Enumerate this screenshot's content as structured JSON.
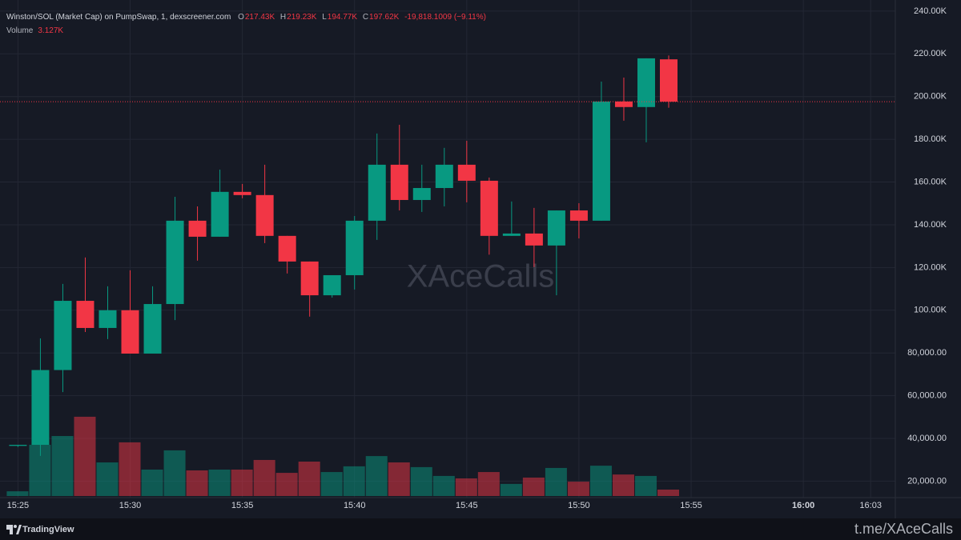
{
  "chart_data": {
    "type": "candlestick",
    "header": {
      "title": "Winston/SOL (Market Cap) on PumpSwap, 1, dexscreener.com",
      "open_label": "O",
      "open": "217.43K",
      "high_label": "H",
      "high": "219.23K",
      "low_label": "L",
      "low": "194.77K",
      "close_label": "C",
      "close": "197.62K",
      "change": "-19,818.1009 (−9.11%)",
      "volume_label": "Volume",
      "volume": "3.127K"
    },
    "watermark": "XAceCalls",
    "footer": {
      "brand": "TradingView",
      "link": "t.me/XAceCalls"
    },
    "up_color": "#089981",
    "down_color": "#f23645",
    "x": [
      925,
      926,
      927,
      928,
      929,
      930,
      931,
      932,
      933,
      934,
      935,
      936,
      937,
      938,
      939,
      940,
      941,
      942,
      943,
      944,
      945,
      946,
      947,
      948,
      949,
      950,
      951,
      952,
      953,
      954
    ],
    "open": [
      36500,
      37000,
      72000,
      104400,
      91700,
      100000,
      79700,
      102900,
      141900,
      134400,
      155400,
      153900,
      134800,
      122800,
      107000,
      116400,
      141900,
      168100,
      151600,
      157200,
      168100,
      160600,
      134800,
      135900,
      130300,
      146700,
      141900,
      197700,
      195100,
      217430
    ],
    "high": [
      37000,
      86800,
      112300,
      124700,
      111200,
      118700,
      111200,
      153100,
      148600,
      165800,
      159100,
      168100,
      134800,
      122800,
      116400,
      144100,
      182700,
      186800,
      168100,
      176000,
      179300,
      162100,
      150900,
      147900,
      146700,
      150100,
      207000,
      208900,
      217900,
      219230
    ],
    "low": [
      36000,
      31800,
      61700,
      89800,
      86500,
      79700,
      79700,
      95400,
      123200,
      134400,
      152400,
      131400,
      117200,
      97000,
      105900,
      109700,
      132900,
      146700,
      146000,
      148600,
      150500,
      126000,
      134800,
      120200,
      107000,
      133600,
      141900,
      188700,
      178600,
      194770
    ],
    "close": [
      37000,
      72000,
      104400,
      91700,
      100000,
      79700,
      102900,
      141900,
      134400,
      155400,
      153900,
      134800,
      122800,
      107000,
      116400,
      141900,
      168100,
      151600,
      157200,
      168100,
      160600,
      134800,
      135900,
      130300,
      146700,
      141900,
      197700,
      195100,
      217900,
      197620
    ],
    "volume": [
      2300,
      25000,
      29300,
      38700,
      16400,
      26200,
      12900,
      22300,
      12500,
      12900,
      12900,
      17600,
      11300,
      16800,
      11700,
      14500,
      19500,
      16400,
      14100,
      9800,
      8600,
      11700,
      5900,
      9000,
      13700,
      7000,
      14800,
      10500,
      9800,
      3127
    ],
    "xlim": [
      924.2,
      964.1
    ],
    "xticks": [
      {
        "value": 925,
        "label": "15:25"
      },
      {
        "value": 930,
        "label": "15:30"
      },
      {
        "value": 935,
        "label": "15:35"
      },
      {
        "value": 940,
        "label": "15:40"
      },
      {
        "value": 945,
        "label": "15:45"
      },
      {
        "value": 950,
        "label": "15:50"
      },
      {
        "value": 955,
        "label": "15:55"
      },
      {
        "value": 960,
        "label": "16:00"
      },
      {
        "value": 963,
        "label": "16:03"
      }
    ],
    "ylim": [
      12300,
      245200
    ],
    "yticks": [
      {
        "value": 240000,
        "label": "240.00K"
      },
      {
        "value": 220000,
        "label": "220.00K"
      },
      {
        "value": 200000,
        "label": "200.00K"
      },
      {
        "value": 180000,
        "label": "180.00K"
      },
      {
        "value": 160000,
        "label": "160.00K"
      },
      {
        "value": 140000,
        "label": "140.00K"
      },
      {
        "value": 120000,
        "label": "120.00K"
      },
      {
        "value": 100000,
        "label": "100.00K"
      },
      {
        "value": 80000,
        "label": "80,000.00"
      },
      {
        "value": 60000,
        "label": "60,000.00"
      },
      {
        "value": 40000,
        "label": "40,000.00"
      },
      {
        "value": 20000,
        "label": "20,000.00"
      }
    ],
    "grid": true
  }
}
